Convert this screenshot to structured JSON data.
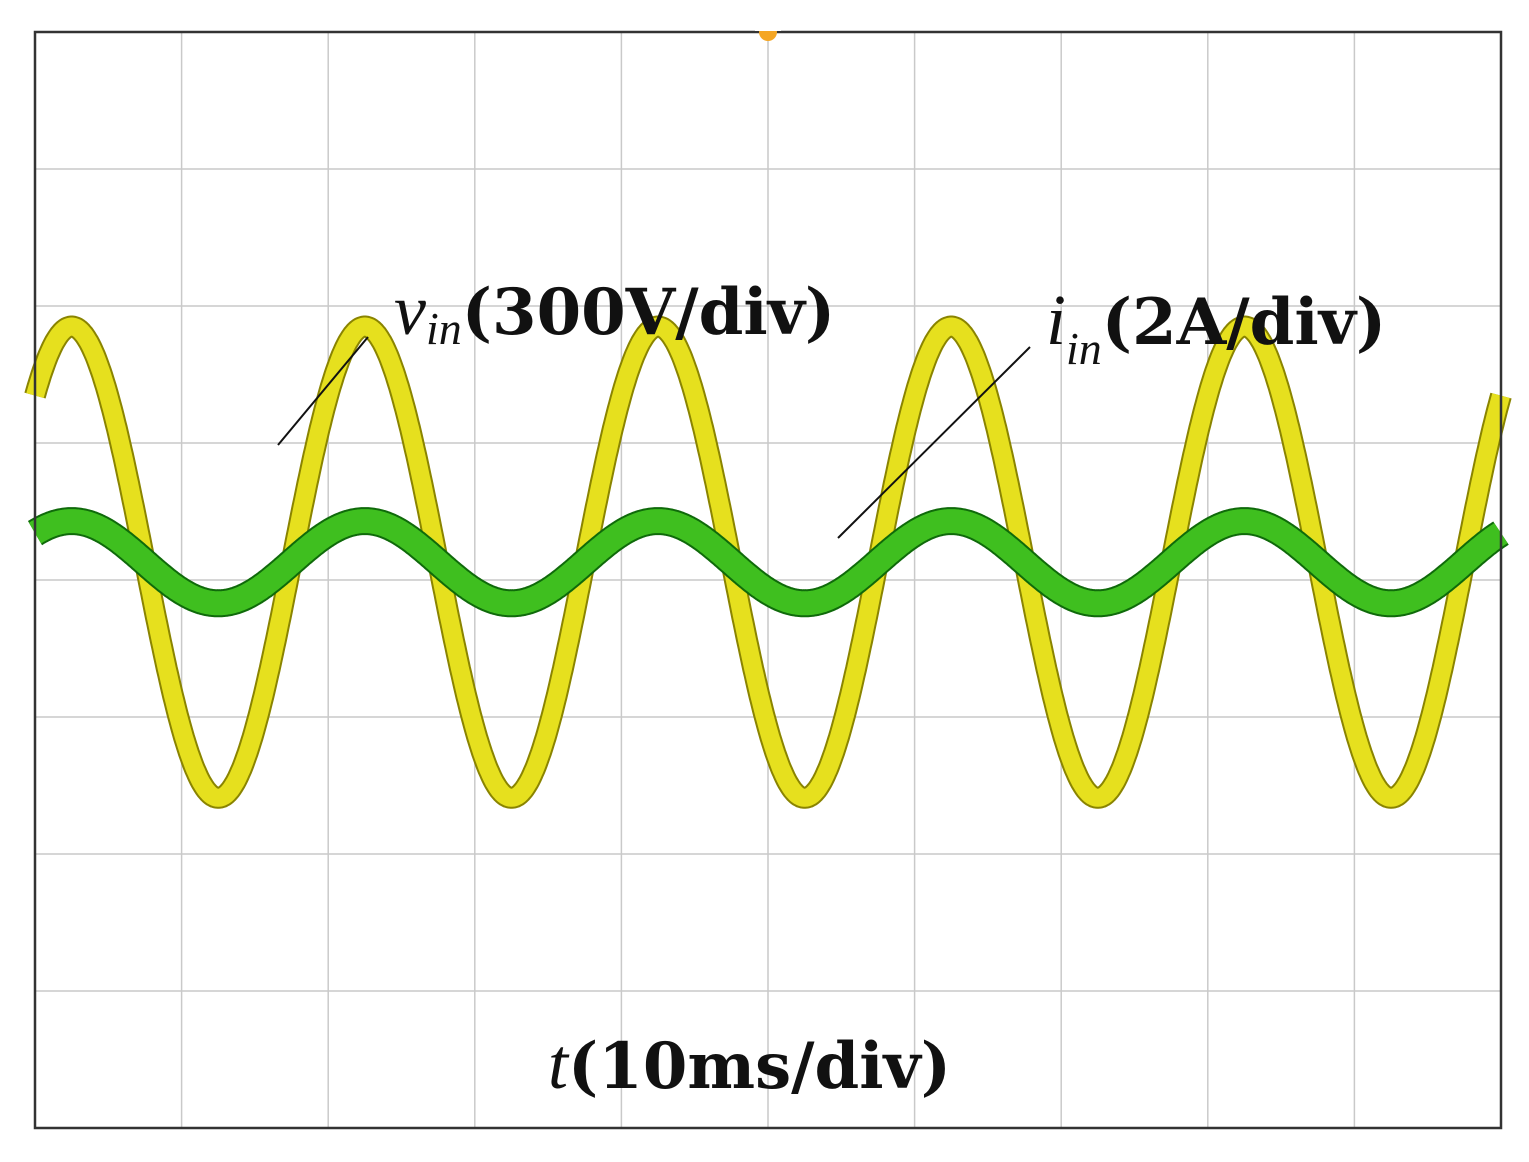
{
  "chart_data": {
    "type": "line",
    "grid": true,
    "divisions": {
      "x": 10,
      "y": 8
    },
    "x_axis": {
      "label_var": "t",
      "label_unit": "(10ms/div)",
      "range_div": [
        0,
        10
      ]
    },
    "y_axis": {
      "range_div": [
        -4,
        4
      ]
    },
    "trigger_marker_color": "#f5a623",
    "series": [
      {
        "name_var": "v",
        "name_sub": "in",
        "name_unit": "(300V/div)",
        "color": "#e6e01e",
        "edge_color": "#8a8400",
        "period_div": 2.0,
        "phase_div": 0.25,
        "amplitude_div": 1.72,
        "clip_div": 1.72,
        "offset_div": 0.13
      },
      {
        "name_var": "i",
        "name_sub": "in",
        "name_unit": "(2A/div)",
        "color": "#3fbf1f",
        "edge_color": "#0f6a0a",
        "period_div": 2.0,
        "phase_div": 0.25,
        "amplitude_div": 0.3,
        "offset_div": 0.13
      }
    ]
  }
}
